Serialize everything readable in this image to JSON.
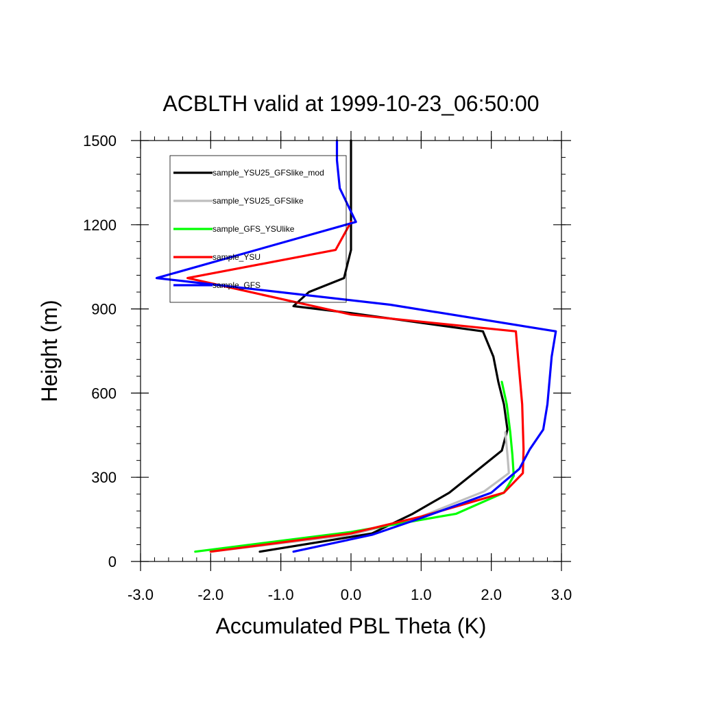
{
  "chart_data": {
    "type": "line",
    "title": "ACBLTH valid at 1999-10-23_06:50:00",
    "xlabel": "Accumulated PBL Theta (K)",
    "ylabel": "Height (m)",
    "xlim": [
      -3.0,
      3.0
    ],
    "ylim": [
      0,
      1500
    ],
    "xticks": [
      "-3.0",
      "-2.0",
      "-1.0",
      "0.0",
      "1.0",
      "2.0",
      "3.0"
    ],
    "yticks": [
      "0",
      "300",
      "600",
      "900",
      "1200",
      "1500"
    ],
    "legend_position": "top-left",
    "series": [
      {
        "name": "sample_YSU25_GFSlike_mod",
        "color": "#000000",
        "points": [
          [
            -1.3,
            35
          ],
          [
            0.3,
            100
          ],
          [
            0.88,
            170
          ],
          [
            1.4,
            245
          ],
          [
            1.75,
            315
          ],
          [
            2.15,
            395
          ],
          [
            2.23,
            470
          ],
          [
            2.18,
            560
          ],
          [
            2.1,
            640
          ],
          [
            2.03,
            730
          ],
          [
            1.88,
            820
          ],
          [
            0.0,
            885
          ],
          [
            -0.82,
            910
          ],
          [
            -0.6,
            960
          ],
          [
            -0.1,
            1010
          ],
          [
            0.0,
            1110
          ],
          [
            0.0,
            1500
          ]
        ]
      },
      {
        "name": "sample_YSU25_GFSlike",
        "color": "#bebebe",
        "points": [
          [
            -2.0,
            35
          ],
          [
            0.0,
            95
          ],
          [
            1.0,
            160
          ],
          [
            1.9,
            250
          ],
          [
            2.25,
            315
          ],
          [
            2.23,
            380
          ],
          [
            2.2,
            460
          ]
        ]
      },
      {
        "name": "sample_GFS_YSUlike",
        "color": "#00ff00",
        "points": [
          [
            -2.22,
            35
          ],
          [
            0.0,
            105
          ],
          [
            1.5,
            170
          ],
          [
            2.18,
            245
          ],
          [
            2.32,
            305
          ],
          [
            2.3,
            380
          ],
          [
            2.27,
            460
          ],
          [
            2.22,
            560
          ],
          [
            2.15,
            640
          ]
        ]
      },
      {
        "name": "sample_YSU",
        "color": "#ff0000",
        "points": [
          [
            -2.0,
            35
          ],
          [
            0.0,
            100
          ],
          [
            1.0,
            160
          ],
          [
            2.18,
            245
          ],
          [
            2.45,
            315
          ],
          [
            2.46,
            400
          ],
          [
            2.44,
            560
          ],
          [
            2.38,
            730
          ],
          [
            2.35,
            820
          ],
          [
            0.0,
            880
          ],
          [
            -2.33,
            1010
          ],
          [
            -0.22,
            1110
          ],
          [
            0.0,
            1210
          ]
        ]
      },
      {
        "name": "sample_GFS",
        "color": "#0000ff",
        "points": [
          [
            -0.82,
            35
          ],
          [
            0.3,
            95
          ],
          [
            1.0,
            155
          ],
          [
            2.0,
            245
          ],
          [
            2.4,
            330
          ],
          [
            2.55,
            400
          ],
          [
            2.74,
            470
          ],
          [
            2.8,
            560
          ],
          [
            2.86,
            730
          ],
          [
            2.92,
            820
          ],
          [
            0.56,
            915
          ],
          [
            -2.77,
            1010
          ],
          [
            0.07,
            1210
          ],
          [
            -0.16,
            1330
          ],
          [
            -0.2,
            1430
          ],
          [
            -0.2,
            1500
          ]
        ]
      }
    ]
  }
}
